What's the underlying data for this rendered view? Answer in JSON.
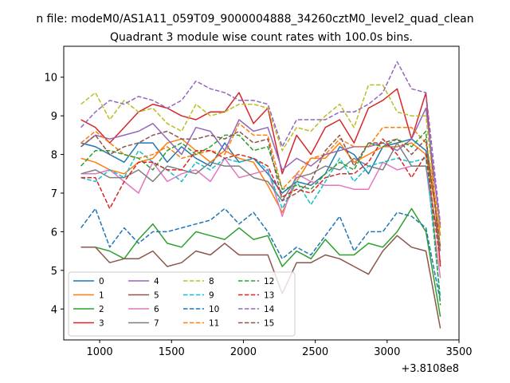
{
  "chart_data": {
    "type": "line",
    "suptitle": "n file: modeM0/AS1A11_059T09_9000004888_34260cztM0_level2_quad_clean",
    "title": "Quadrant 3 module wise count rates with 100.0s bins.",
    "xlabel": "",
    "ylabel": "",
    "x_offset_label": "+3.8108e8",
    "xlim": [
      750,
      3500
    ],
    "ylim": [
      3.2,
      10.8
    ],
    "x_ticks": [
      1000,
      1500,
      2000,
      2500,
      3000,
      3500
    ],
    "y_ticks": [
      4,
      5,
      6,
      7,
      8,
      9,
      10
    ],
    "grid": false,
    "legend_position": "lower-left",
    "legend_columns": 4,
    "x": [
      870,
      970,
      1070,
      1170,
      1270,
      1370,
      1470,
      1570,
      1670,
      1770,
      1870,
      1970,
      2070,
      2170,
      2270,
      2370,
      2470,
      2570,
      2670,
      2770,
      2870,
      2970,
      3070,
      3170,
      3270,
      3370
    ],
    "series": [
      {
        "name": "0",
        "color": "#1f77b4",
        "style": "solid",
        "values": [
          8.3,
          8.2,
          8.0,
          7.8,
          8.3,
          8.3,
          7.8,
          8.2,
          7.9,
          7.7,
          8.3,
          7.8,
          7.9,
          7.5,
          7.0,
          7.3,
          7.2,
          7.5,
          8.2,
          8.0,
          7.5,
          8.2,
          8.3,
          8.4,
          8.1,
          5.9
        ]
      },
      {
        "name": "1",
        "color": "#ff7f0e",
        "style": "solid",
        "values": [
          7.9,
          7.8,
          7.6,
          7.5,
          7.8,
          7.9,
          8.3,
          8.4,
          8.1,
          7.8,
          8.1,
          7.9,
          7.8,
          7.2,
          6.5,
          7.3,
          7.9,
          7.9,
          8.3,
          7.8,
          8.0,
          8.2,
          8.2,
          8.3,
          8.0,
          5.9
        ]
      },
      {
        "name": "2",
        "color": "#2ca02c",
        "style": "solid",
        "values": [
          5.6,
          5.6,
          5.5,
          5.3,
          5.8,
          6.2,
          5.7,
          5.6,
          6.0,
          5.9,
          5.8,
          6.1,
          5.8,
          5.9,
          5.1,
          5.5,
          5.3,
          5.8,
          5.4,
          5.4,
          5.7,
          5.6,
          6.0,
          6.6,
          6.0,
          3.8
        ]
      },
      {
        "name": "3",
        "color": "#d62728",
        "style": "solid",
        "values": [
          8.9,
          8.7,
          8.3,
          8.7,
          9.1,
          9.3,
          9.2,
          9.0,
          8.9,
          9.1,
          9.1,
          9.6,
          8.8,
          9.2,
          7.5,
          8.5,
          8.0,
          8.7,
          8.9,
          8.3,
          9.2,
          9.4,
          9.7,
          8.4,
          9.6,
          5.1
        ]
      },
      {
        "name": "4",
        "color": "#9467bd",
        "style": "solid",
        "values": [
          8.2,
          8.5,
          8.4,
          8.5,
          8.6,
          8.8,
          8.4,
          8.0,
          8.7,
          8.6,
          8.1,
          8.9,
          8.6,
          8.7,
          7.6,
          7.9,
          7.7,
          8.0,
          8.1,
          8.2,
          8.2,
          8.3,
          8.1,
          8.4,
          9.2,
          6.1
        ]
      },
      {
        "name": "5",
        "color": "#8c564b",
        "style": "solid",
        "values": [
          5.6,
          5.6,
          5.2,
          5.3,
          5.3,
          5.5,
          5.1,
          5.2,
          5.5,
          5.4,
          5.7,
          5.4,
          5.4,
          5.4,
          4.4,
          5.2,
          5.2,
          5.4,
          5.3,
          5.1,
          4.9,
          5.5,
          5.9,
          5.6,
          5.5,
          3.5
        ]
      },
      {
        "name": "6",
        "color": "#e377c2",
        "style": "solid",
        "values": [
          7.5,
          7.5,
          7.6,
          7.3,
          7.0,
          7.8,
          7.3,
          7.5,
          7.6,
          7.3,
          7.9,
          7.4,
          7.5,
          7.6,
          6.4,
          7.5,
          7.3,
          7.2,
          7.2,
          7.1,
          7.1,
          7.8,
          7.6,
          7.7,
          7.7,
          4.8
        ]
      },
      {
        "name": "7",
        "color": "#7f7f7f",
        "style": "solid",
        "values": [
          7.5,
          7.6,
          7.4,
          7.4,
          7.6,
          7.3,
          7.7,
          7.6,
          7.5,
          7.8,
          7.7,
          7.7,
          7.4,
          7.3,
          6.8,
          7.4,
          7.5,
          7.7,
          7.6,
          7.9,
          7.7,
          7.6,
          8.3,
          7.7,
          7.7,
          5.5
        ]
      },
      {
        "name": "8",
        "color": "#bcbd22",
        "style": "dashed",
        "values": [
          9.3,
          9.6,
          8.9,
          9.4,
          9.1,
          9.2,
          8.8,
          8.6,
          9.3,
          9.0,
          9.1,
          9.3,
          9.3,
          9.2,
          8.1,
          8.7,
          8.6,
          9.0,
          9.3,
          8.7,
          9.8,
          9.8,
          9.1,
          9.0,
          9.0,
          5.6
        ]
      },
      {
        "name": "9",
        "color": "#17becf",
        "style": "dashed",
        "values": [
          7.4,
          7.3,
          7.6,
          7.4,
          8.1,
          7.8,
          7.6,
          7.3,
          7.8,
          7.6,
          7.9,
          7.8,
          7.9,
          7.6,
          6.6,
          7.3,
          6.7,
          7.3,
          7.9,
          7.3,
          7.7,
          7.8,
          7.9,
          7.8,
          7.9,
          4.3
        ]
      },
      {
        "name": "10",
        "color": "#1f77b4",
        "style": "dashed",
        "values": [
          6.1,
          6.6,
          5.6,
          6.1,
          5.7,
          6.0,
          6.0,
          6.1,
          6.2,
          6.3,
          6.6,
          6.2,
          6.5,
          6.0,
          5.3,
          5.6,
          5.4,
          5.9,
          6.4,
          5.5,
          6.0,
          6.0,
          6.5,
          6.4,
          6.1,
          4.2
        ]
      },
      {
        "name": "11",
        "color": "#ff7f0e",
        "style": "dashed",
        "values": [
          8.3,
          8.6,
          8.3,
          8.0,
          7.9,
          8.0,
          8.2,
          7.9,
          8.0,
          8.1,
          8.0,
          8.8,
          8.5,
          8.5,
          7.1,
          7.5,
          7.9,
          8.0,
          8.4,
          8.2,
          8.2,
          8.7,
          8.7,
          8.7,
          8.3,
          6.1
        ]
      },
      {
        "name": "12",
        "color": "#2ca02c",
        "style": "dashed",
        "values": [
          7.7,
          8.1,
          8.1,
          8.0,
          7.9,
          7.6,
          8.1,
          8.3,
          8.0,
          8.2,
          8.5,
          8.5,
          8.1,
          8.2,
          7.1,
          7.2,
          7.1,
          7.5,
          7.8,
          7.6,
          8.3,
          8.2,
          8.4,
          8.2,
          8.6,
          4.1
        ]
      },
      {
        "name": "13",
        "color": "#d62728",
        "style": "dashed",
        "values": [
          7.4,
          7.4,
          6.6,
          7.3,
          7.8,
          7.8,
          7.6,
          7.6,
          8.1,
          8.1,
          7.9,
          8.0,
          7.9,
          7.7,
          6.9,
          7.1,
          7.0,
          7.4,
          7.5,
          7.5,
          7.8,
          8.4,
          8.0,
          7.4,
          8.0,
          5.2
        ]
      },
      {
        "name": "14",
        "color": "#9467bd",
        "style": "dashed",
        "values": [
          8.7,
          9.1,
          9.4,
          9.3,
          9.5,
          9.4,
          9.2,
          9.4,
          9.9,
          9.7,
          9.6,
          9.4,
          9.4,
          9.3,
          8.2,
          8.9,
          8.9,
          8.9,
          9.1,
          9.1,
          9.3,
          9.6,
          10.4,
          9.7,
          9.6,
          6.2
        ]
      },
      {
        "name": "15",
        "color": "#8c564b",
        "style": "dashed",
        "values": [
          8.2,
          8.5,
          8.0,
          8.2,
          8.3,
          8.5,
          8.6,
          8.4,
          8.4,
          8.5,
          8.4,
          8.6,
          8.3,
          8.4,
          6.8,
          7.0,
          7.3,
          8.1,
          8.5,
          7.7,
          8.3,
          8.3,
          8.4,
          8.0,
          8.4,
          5.6
        ]
      }
    ]
  }
}
